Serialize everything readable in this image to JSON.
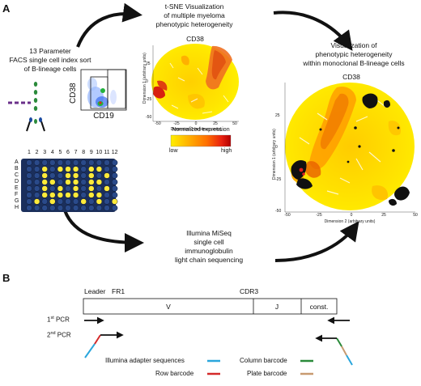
{
  "panel_a": {
    "label": "A",
    "sort_text": [
      "13 Parameter",
      "FACS single cell index sort",
      "of B-lineage cells"
    ],
    "facs_ylabel": "CD38",
    "facs_xlabel": "CD19",
    "plate_cols": [
      "1",
      "2",
      "3",
      "4",
      "5",
      "6",
      "7",
      "8",
      "9",
      "10",
      "11",
      "12"
    ],
    "plate_rows": [
      "A",
      "B",
      "C",
      "D",
      "E",
      "F",
      "G",
      "H"
    ],
    "tsne_heading": [
      "t-SNE Visualization",
      "of multiple myeloma",
      "phenotypic heterogeneity"
    ],
    "tsne_plot": {
      "title": "CD38",
      "xlabel": "Dimension 2 (arbitrary units)",
      "ylabel": "Dimension 1 (arbitrary units)",
      "xticks": [
        "-50",
        "-25",
        "0",
        "25",
        "50"
      ],
      "yticks": [
        "25",
        "0",
        "-25",
        "-50"
      ]
    },
    "colorbar": {
      "title": "Normalized expression",
      "low": "low",
      "high": "high",
      "colors": [
        "#ffee00",
        "#ffb000",
        "#ff7000",
        "#e82010",
        "#b00000"
      ]
    },
    "mono_heading": [
      "Visualization of",
      "phenotypic heterogeneity",
      "within monoclonal B-lineage cells"
    ],
    "mono_plot": {
      "title": "CD38",
      "xlabel": "Dimension 2 (arbitrary units)",
      "ylabel": "Dimension 1 (arbitrary units)",
      "xticks": [
        "-50",
        "-25",
        "0",
        "25",
        "50"
      ],
      "yticks": [
        "25",
        "0",
        "-25",
        "-50"
      ]
    },
    "seq_text": [
      "Illumina MiSeq",
      "single cell",
      "immunoglobulin",
      "light chain sequencing"
    ]
  },
  "panel_b": {
    "label": "B",
    "leader": "Leader",
    "fr1": "FR1",
    "cdr3": "CDR3",
    "segments": {
      "v": "V",
      "j": "J",
      "const": "const."
    },
    "pcr1": "1st PCR",
    "pcr2": "2nd PCR",
    "legend": [
      {
        "label": "Illumina adapter sequences",
        "color": "#2aa6dc"
      },
      {
        "label": "Row barcode",
        "color": "#d42a2a"
      },
      {
        "label": "Column barcode",
        "color": "#2a8a3a"
      },
      {
        "label": "Plate barcode",
        "color": "#c89a70"
      }
    ]
  }
}
